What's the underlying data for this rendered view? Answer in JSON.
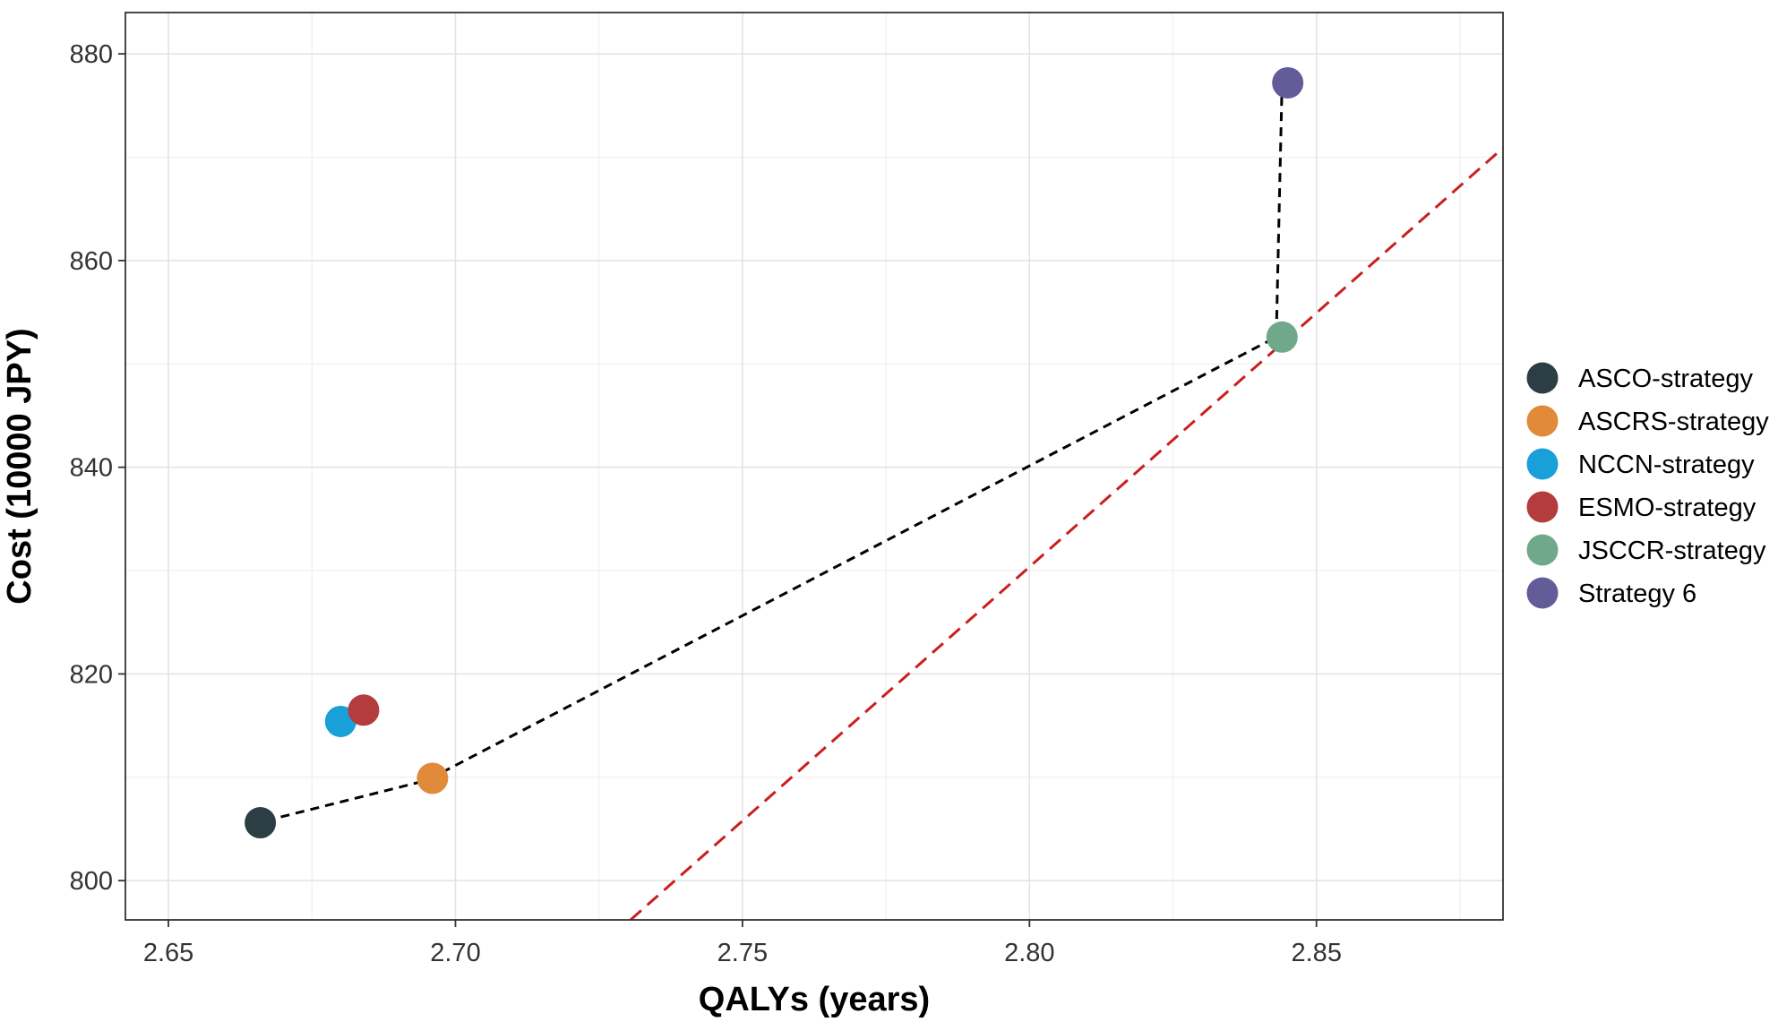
{
  "chart_data": {
    "type": "scatter",
    "title": "",
    "xlabel": "QALYs (years)",
    "ylabel": "Cost (10000 JPY)",
    "xlim": [
      2.6425,
      2.8825
    ],
    "ylim": [
      796.2,
      884.0
    ],
    "xticks": [
      2.65,
      2.7,
      2.75,
      2.8,
      2.85
    ],
    "xtick_labels": [
      "2.65",
      "2.70",
      "2.75",
      "2.80",
      "2.85"
    ],
    "yticks": [
      800,
      820,
      840,
      860,
      880
    ],
    "ytick_labels": [
      "800",
      "820",
      "840",
      "860",
      "880"
    ],
    "grid": true,
    "legend_position": "right",
    "series": [
      {
        "name": "ASCO-strategy",
        "x": 2.666,
        "y": 805.6,
        "color": "#2c3e44"
      },
      {
        "name": "ASCRS-strategy",
        "x": 2.696,
        "y": 809.9,
        "color": "#e08a3a"
      },
      {
        "name": "NCCN-strategy",
        "x": 2.68,
        "y": 815.4,
        "color": "#1aa0d8"
      },
      {
        "name": "ESMO-strategy",
        "x": 2.684,
        "y": 816.5,
        "color": "#b43c3c"
      },
      {
        "name": "JSCCR-strategy",
        "x": 2.844,
        "y": 852.6,
        "color": "#6fa88a"
      },
      {
        "name": "Strategy 6",
        "x": 2.845,
        "y": 877.2,
        "color": "#625c99"
      }
    ],
    "frontier_line": {
      "style": "dashed",
      "color": "#000000",
      "points": [
        [
          2.667,
          805.8
        ],
        [
          2.695,
          809.7
        ],
        [
          2.843,
          852.6
        ],
        [
          2.844,
          877.0
        ]
      ]
    },
    "threshold_line": {
      "style": "dashed",
      "color": "#c8201e",
      "points": [
        [
          2.7305,
          796.2
        ],
        [
          2.8825,
          870.9
        ]
      ]
    }
  }
}
